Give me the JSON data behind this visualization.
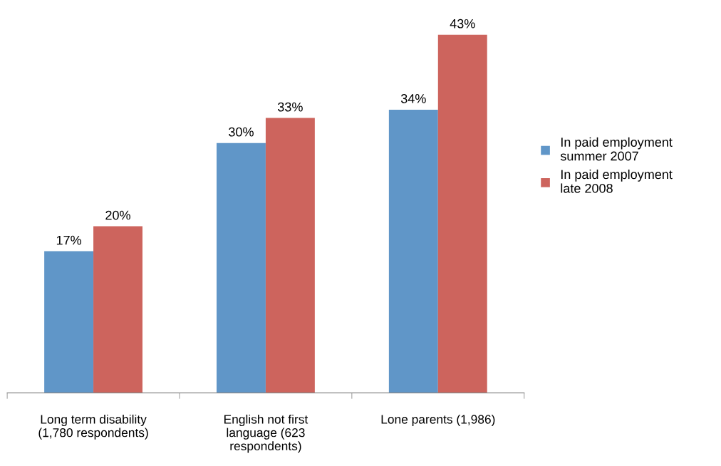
{
  "chart_data": {
    "type": "bar",
    "categories": [
      "Long term disability\n(1,780 respondents)",
      "English not first\nlanguage (623\nrespondents)",
      "Lone parents (1,986)"
    ],
    "series": [
      {
        "name": "In paid employment\nsummer 2007",
        "color": "#6096c8",
        "values": [
          17,
          30,
          34
        ],
        "value_labels": [
          "17%",
          "30%",
          "34%"
        ]
      },
      {
        "name": "In paid employment\nlate 2008",
        "color": "#cd645d",
        "values": [
          20,
          33,
          43
        ],
        "value_labels": [
          "20%",
          "33%",
          "43%"
        ]
      }
    ],
    "legend": "right",
    "grid": false
  }
}
